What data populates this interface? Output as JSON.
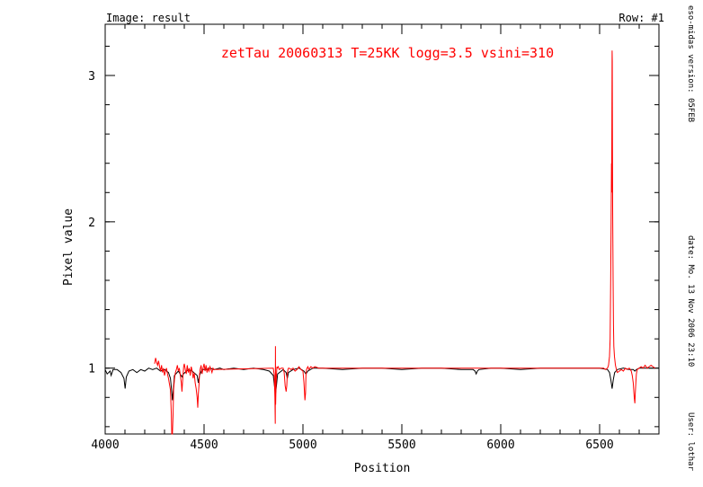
{
  "chart_data": {
    "type": "line",
    "image_label": "Image: result",
    "row_label": "Row: #1",
    "title": "zetTau 20060313 T=25KK logg=3.5 vsini=310",
    "xlabel": "Position",
    "ylabel": "Pixel value",
    "xlim": [
      4000,
      6800
    ],
    "ylim": [
      0.55,
      3.35
    ],
    "x_ticks": [
      4000,
      4500,
      5000,
      5500,
      6000,
      6500
    ],
    "y_ticks": [
      1,
      2,
      3
    ],
    "x_minor_step": 100,
    "y_minor_step": 0.2,
    "colors": {
      "model": "#000000",
      "observed": "#ff0000"
    },
    "series": [
      {
        "color_key": "model",
        "x": [
          4000,
          4010,
          4025,
          4030,
          4040,
          4060,
          4080,
          4095,
          4101,
          4107,
          4120,
          4140,
          4160,
          4180,
          4200,
          4220,
          4240,
          4260,
          4280,
          4300,
          4320,
          4330,
          4335,
          4340,
          4345,
          4350,
          4370,
          4388,
          4395,
          4420,
          4440,
          4465,
          4471,
          4477,
          4490,
          4510,
          4530,
          4550,
          4580,
          4600,
          4650,
          4700,
          4750,
          4800,
          4830,
          4850,
          4856,
          4861,
          4866,
          4872,
          4900,
          4915,
          4921,
          4927,
          4950,
          4980,
          5005,
          5015,
          5025,
          5050,
          5100,
          5200,
          5300,
          5400,
          5500,
          5600,
          5700,
          5800,
          5860,
          5870,
          5876,
          5882,
          5890,
          5950,
          6000,
          6100,
          6200,
          6300,
          6400,
          6450,
          6500,
          6540,
          6550,
          6557,
          6563,
          6569,
          6576,
          6590,
          6620,
          6650,
          6670,
          6678,
          6686,
          6700,
          6720,
          6750,
          6780
        ],
        "y": [
          0.99,
          0.96,
          0.98,
          0.95,
          0.99,
          0.99,
          0.97,
          0.93,
          0.86,
          0.94,
          0.98,
          0.99,
          0.97,
          0.99,
          0.98,
          1.0,
          0.99,
          1.0,
          0.98,
          0.99,
          0.97,
          0.93,
          0.86,
          0.78,
          0.86,
          0.95,
          0.98,
          0.94,
          0.96,
          0.99,
          0.98,
          0.95,
          0.9,
          0.95,
          0.99,
          0.99,
          1.0,
          0.99,
          1.0,
          0.99,
          1.0,
          0.99,
          1.0,
          0.99,
          0.98,
          0.95,
          0.88,
          0.82,
          0.88,
          0.96,
          0.99,
          0.97,
          0.93,
          0.97,
          0.99,
          1.0,
          0.98,
          0.96,
          0.98,
          1.0,
          1.0,
          0.99,
          1.0,
          1.0,
          0.99,
          1.0,
          1.0,
          0.99,
          0.99,
          0.98,
          0.96,
          0.98,
          0.99,
          1.0,
          1.0,
          0.99,
          1.0,
          1.0,
          1.0,
          1.0,
          1.0,
          0.99,
          0.97,
          0.92,
          0.86,
          0.92,
          0.97,
          0.99,
          1.0,
          0.99,
          0.99,
          0.98,
          0.99,
          1.0,
          1.0,
          1.0,
          1.0
        ]
      },
      {
        "color_key": "observed",
        "x": [
          4250,
          4255,
          4260,
          4265,
          4270,
          4275,
          4280,
          4285,
          4290,
          4295,
          4300,
          4305,
          4310,
          4315,
          4320,
          4325,
          4330,
          4334,
          4337,
          4340,
          4343,
          4346,
          4350,
          4355,
          4360,
          4365,
          4370,
          4375,
          4380,
          4385,
          4388,
          4391,
          4394,
          4397,
          4400,
          4405,
          4410,
          4415,
          4420,
          4425,
          4430,
          4435,
          4440,
          4445,
          4450,
          4455,
          4460,
          4465,
          4468,
          4471,
          4474,
          4477,
          4480,
          4485,
          4490,
          4495,
          4500,
          4505,
          4510,
          4515,
          4520,
          4525,
          4530,
          4535,
          4540,
          4545,
          4550,
          4850,
          4855,
          4858,
          4860,
          4861,
          4862,
          4864,
          4866,
          4868,
          4870,
          4875,
          4880,
          4890,
          4900,
          4905,
          4910,
          4915,
          4918,
          4921,
          4924,
          4927,
          4930,
          4940,
          4950,
          4960,
          4970,
          4980,
          4990,
          5000,
          5005,
          5010,
          5013,
          5015,
          5018,
          5021,
          5025,
          5030,
          5040,
          5050,
          5060,
          5080,
          6520,
          6530,
          6540,
          6545,
          6550,
          6553,
          6556,
          6558,
          6560,
          6561,
          6562,
          6563,
          6564,
          6565,
          6566,
          6568,
          6570,
          6572,
          6575,
          6580,
          6585,
          6590,
          6600,
          6610,
          6620,
          6630,
          6640,
          6650,
          6660,
          6665,
          6670,
          6675,
          6678,
          6680,
          6683,
          6686,
          6690,
          6700,
          6710,
          6720,
          6730,
          6740,
          6750,
          6760,
          6770,
          6780
        ],
        "y": [
          1.03,
          1.07,
          1.04,
          1.02,
          1.05,
          1.01,
          0.98,
          1.02,
          0.97,
          1.0,
          0.95,
          0.98,
          1.0,
          0.96,
          0.93,
          0.89,
          0.85,
          0.7,
          0.5,
          0.55,
          0.68,
          0.85,
          0.92,
          0.97,
          0.99,
          1.02,
          0.98,
          1.0,
          0.95,
          0.9,
          0.84,
          0.9,
          0.96,
          1.01,
          1.03,
          0.99,
          0.96,
          1.02,
          0.97,
          1.0,
          0.95,
          1.01,
          0.98,
          0.93,
          0.97,
          0.9,
          0.86,
          0.8,
          0.73,
          0.82,
          0.88,
          0.95,
          0.99,
          1.02,
          0.96,
          1.0,
          1.03,
          0.98,
          1.02,
          0.97,
          1.0,
          0.98,
          1.01,
          0.99,
          0.97,
          1.0,
          0.99,
          1.0,
          0.95,
          0.8,
          0.62,
          1.15,
          0.75,
          0.9,
          0.95,
          1.01,
          1.0,
          1.01,
          0.99,
          1.0,
          1.0,
          0.97,
          0.88,
          0.84,
          0.88,
          0.96,
          0.99,
          1.0,
          1.0,
          0.99,
          1.0,
          0.98,
          0.99,
          1.01,
          0.99,
          0.98,
          0.9,
          0.78,
          0.83,
          0.95,
          0.99,
          1.0,
          1.01,
          0.99,
          1.01,
          1.0,
          1.01,
          1.0,
          1.0,
          0.99,
          1.0,
          1.02,
          1.08,
          1.2,
          1.6,
          2.0,
          2.4,
          2.2,
          2.6,
          3.17,
          3.1,
          2.5,
          2.1,
          1.6,
          1.3,
          1.15,
          1.08,
          1.02,
          0.99,
          0.97,
          0.98,
          0.99,
          0.98,
          1.0,
          0.99,
          1.0,
          0.98,
          0.95,
          0.9,
          0.8,
          0.76,
          0.82,
          0.9,
          0.96,
          0.99,
          1.0,
          1.01,
          1.0,
          1.02,
          1.0,
          1.01,
          1.02,
          1.01,
          1.0
        ]
      }
    ],
    "legend": "none",
    "grid": false
  },
  "side_text": {
    "version": "eso-midas version: 05FEB",
    "date": "date: Mo. 13 Nov 2006 23:10",
    "user": "User: lothar"
  }
}
